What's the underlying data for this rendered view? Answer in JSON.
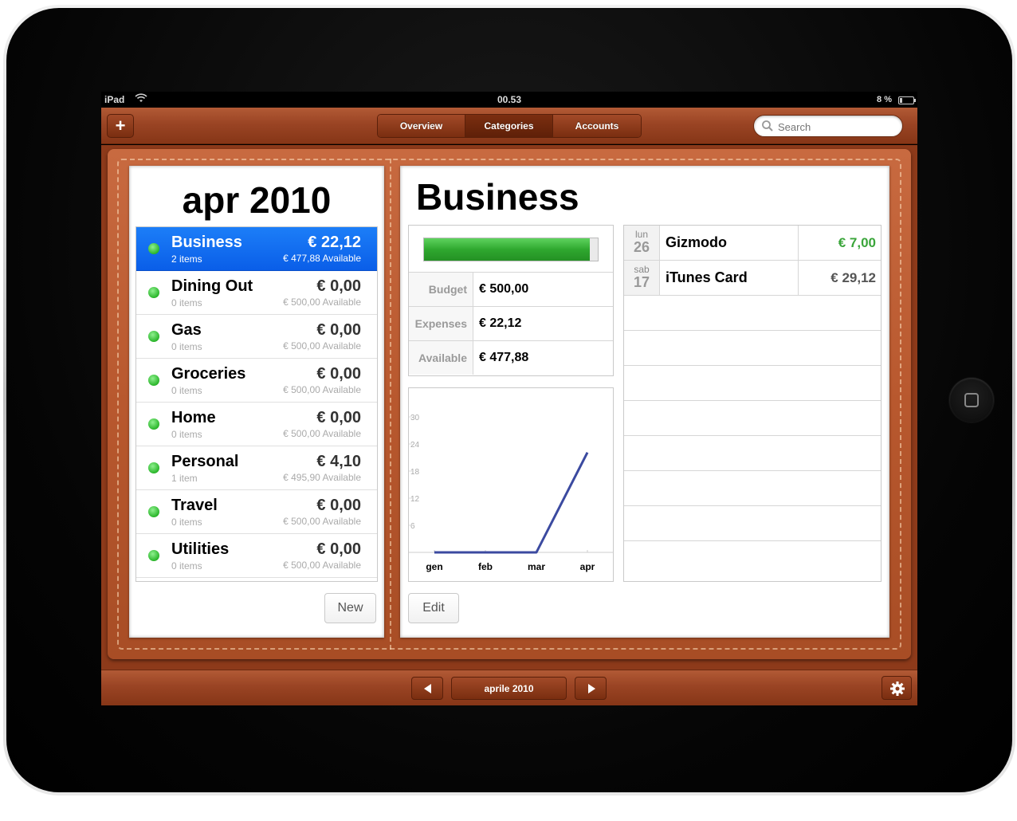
{
  "status": {
    "carrier": "iPad",
    "time": "00.53",
    "battery": "8 %"
  },
  "toolbar": {
    "add_label": "+",
    "tabs": [
      {
        "label": "Overview",
        "active": false
      },
      {
        "label": "Categories",
        "active": true
      },
      {
        "label": "Accounts",
        "active": false
      }
    ],
    "search_placeholder": "Search"
  },
  "left": {
    "month_title": "apr 2010",
    "categories": [
      {
        "name": "Business",
        "count": "2 items",
        "amount": "€ 22,12",
        "available": "€ 477,88 Available",
        "selected": true
      },
      {
        "name": "Dining Out",
        "count": "0 items",
        "amount": "€ 0,00",
        "available": "€ 500,00 Available"
      },
      {
        "name": "Gas",
        "count": "0 items",
        "amount": "€ 0,00",
        "available": "€ 500,00 Available"
      },
      {
        "name": "Groceries",
        "count": "0 items",
        "amount": "€ 0,00",
        "available": "€ 500,00 Available"
      },
      {
        "name": "Home",
        "count": "0 items",
        "amount": "€ 0,00",
        "available": "€ 500,00 Available"
      },
      {
        "name": "Personal",
        "count": "1 item",
        "amount": "€ 4,10",
        "available": "€ 495,90 Available"
      },
      {
        "name": "Travel",
        "count": "0 items",
        "amount": "€ 0,00",
        "available": "€ 500,00 Available"
      },
      {
        "name": "Utilities",
        "count": "0 items",
        "amount": "€ 0,00",
        "available": "€ 500,00 Available"
      }
    ],
    "new_label": "New"
  },
  "right": {
    "title": "Business",
    "budget_used_fraction": 0.956,
    "budget": [
      {
        "label": "Budget",
        "value": "€ 500,00"
      },
      {
        "label": "Expenses",
        "value": "€ 22,12"
      },
      {
        "label": "Available",
        "value": "€ 477,88"
      }
    ],
    "edit_label": "Edit",
    "transactions": [
      {
        "dow": "lun",
        "day": "26",
        "desc": "Gizmodo",
        "amount": "€ 7,00",
        "positive": true
      },
      {
        "dow": "sab",
        "day": "17",
        "desc": "iTunes Card",
        "amount": "€ 29,12",
        "positive": false
      }
    ]
  },
  "chart_data": {
    "type": "line",
    "categories": [
      "gen",
      "feb",
      "mar",
      "apr"
    ],
    "series": [
      {
        "values": [
          0,
          0,
          0,
          22.12
        ]
      }
    ],
    "yticks": [
      6,
      12,
      18,
      24,
      30
    ],
    "ylim": [
      0,
      30
    ],
    "line_color": "#3b4aa0"
  },
  "bottombar": {
    "month_label": "aprile 2010"
  }
}
